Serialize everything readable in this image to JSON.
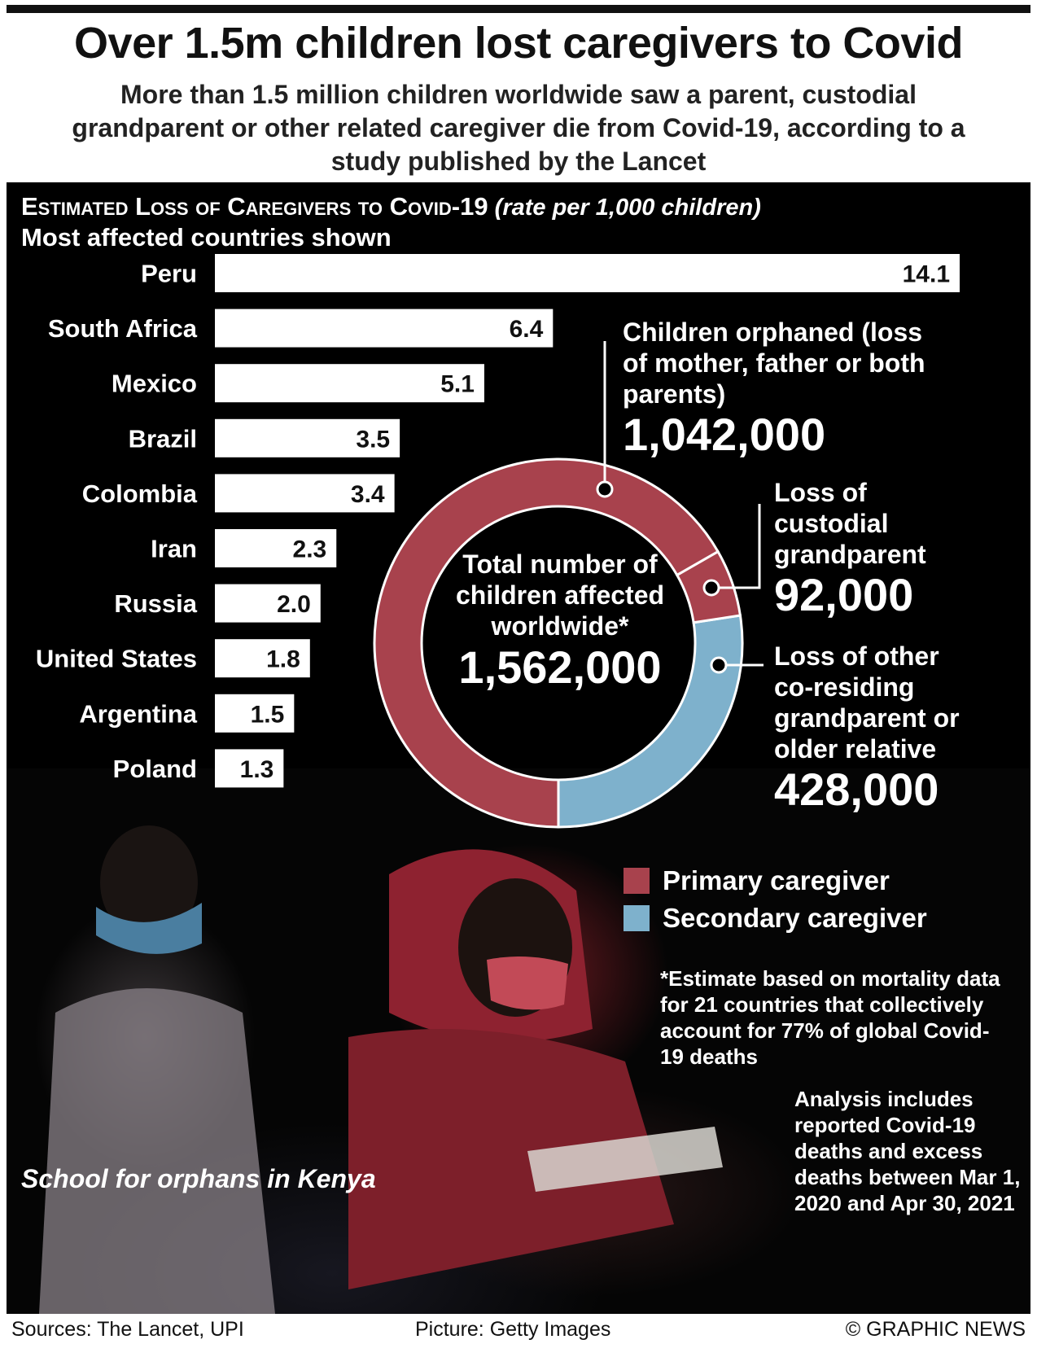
{
  "title": "Over 1.5m children lost caregivers to Covid",
  "subtitle": "More than 1.5 million children worldwide saw a parent, custodial grandparent or other related caregiver die from Covid-19, according to a study published by the Lancet",
  "chart_head": {
    "main": "Estimated Loss of Caregivers to Covid-19",
    "unit": "(rate per 1,000 children)",
    "sub": "Most affected countries shown"
  },
  "chart_data": [
    {
      "type": "bar",
      "orientation": "horizontal",
      "categories": [
        "Peru",
        "South Africa",
        "Mexico",
        "Brazil",
        "Colombia",
        "Iran",
        "Russia",
        "United States",
        "Argentina",
        "Poland"
      ],
      "values": [
        14.1,
        6.4,
        5.1,
        3.5,
        3.4,
        2.3,
        2.0,
        1.8,
        1.5,
        1.3
      ],
      "value_labels": [
        "14.1",
        "6.4",
        "5.1",
        "3.5",
        "3.4",
        "2.3",
        "2.0",
        "1.8",
        "1.5",
        "1.3"
      ],
      "title": "Estimated Loss of Caregivers to Covid-19 (rate per 1,000 children)",
      "bar_color": "#ffffff",
      "xlim": [
        0,
        14.1
      ]
    },
    {
      "type": "pie",
      "donut": true,
      "center_label": "Total number of children affected worldwide*",
      "center_value": "1,562,000",
      "total": 1562000,
      "slices": [
        {
          "label": "Children orphaned (loss of mother, father or both parents)",
          "value": 1042000,
          "value_label": "1,042,000",
          "group": "Primary caregiver"
        },
        {
          "label": "Loss of custodial grandparent",
          "value": 92000,
          "value_label": "92,000",
          "group": "Primary caregiver"
        },
        {
          "label": "Loss of other co-residing grandparent or older relative",
          "value": 428000,
          "value_label": "428,000",
          "group": "Secondary caregiver"
        }
      ],
      "legend": [
        {
          "label": "Primary caregiver",
          "color": "#a8424d"
        },
        {
          "label": "Secondary caregiver",
          "color": "#7eb1cc"
        }
      ]
    }
  ],
  "annotations": {
    "orphaned_label": "Children orphaned (loss of mother, father or both parents)",
    "orphaned_value": "1,042,000",
    "custodial_label": "Loss of custodial grandparent",
    "custodial_value": "92,000",
    "other_label": "Loss of other co-residing grandparent or older relative",
    "other_value": "428,000"
  },
  "legend": {
    "primary": "Primary caregiver",
    "secondary": "Secondary caregiver"
  },
  "note": "*Estimate based on mortality data for 21 countries that collectively account for 77% of global Covid-19 deaths",
  "analysis_note": "Analysis includes reported Covid-19 deaths and excess deaths between Mar 1, 2020 and Apr 30, 2021",
  "photo_caption": "School for orphans in Kenya",
  "footer": {
    "sources": "Sources: The Lancet, UPI",
    "picture": "Picture: Getty Images",
    "credit": "© GRAPHIC NEWS"
  },
  "colors": {
    "primary": "#a8424d",
    "secondary": "#7eb1cc",
    "background": "#000000"
  }
}
